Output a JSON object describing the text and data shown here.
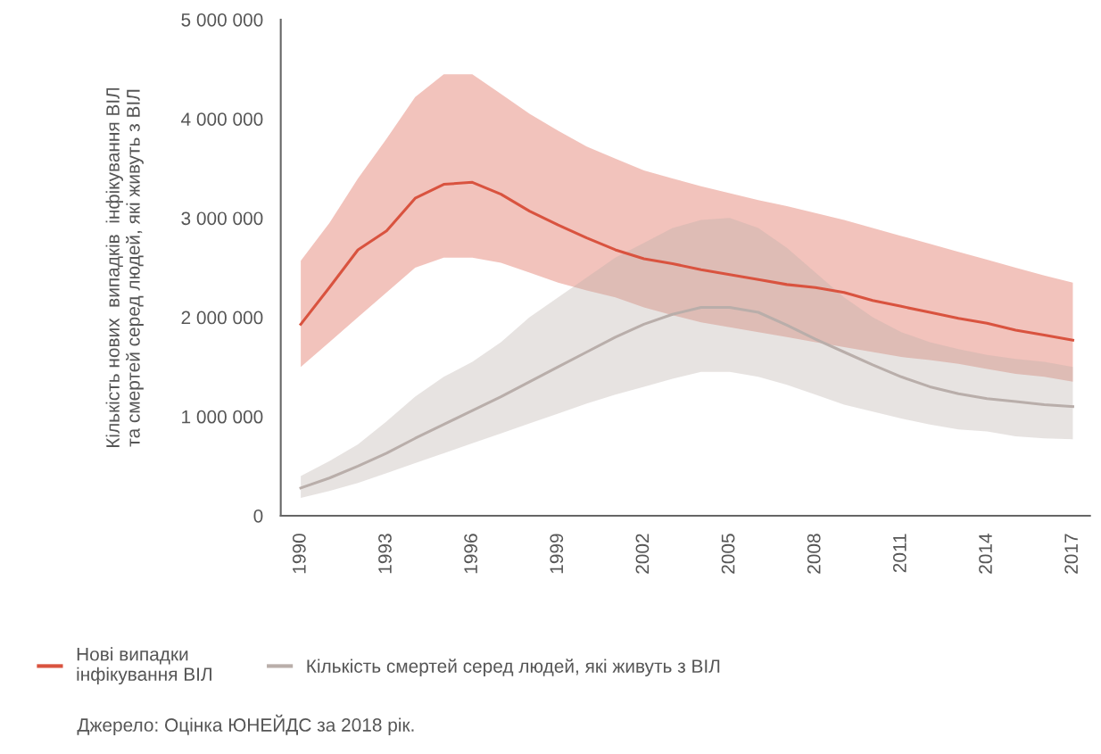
{
  "chart_data": {
    "type": "line",
    "ylabel": "Кількість нових  випадків  інфікування ВІЛ\nта смертей серед людей, які живуть з ВІЛ",
    "x": [
      1990,
      1991,
      1992,
      1993,
      1994,
      1995,
      1996,
      1997,
      1998,
      1999,
      2000,
      2001,
      2002,
      2003,
      2004,
      2005,
      2006,
      2007,
      2008,
      2009,
      2010,
      2011,
      2012,
      2013,
      2014,
      2015,
      2016,
      2017
    ],
    "series": [
      {
        "name": "Нові випадки\nінфікування ВІЛ",
        "color": "#d9533f",
        "values": [
          1930000,
          2300000,
          2680000,
          2870000,
          3200000,
          3340000,
          3360000,
          3240000,
          3070000,
          2930000,
          2800000,
          2680000,
          2590000,
          2540000,
          2480000,
          2430000,
          2380000,
          2330000,
          2300000,
          2250000,
          2170000,
          2110000,
          2050000,
          1990000,
          1940000,
          1870000,
          1820000,
          1770000
        ],
        "upper": [
          2570000,
          2950000,
          3400000,
          3800000,
          4220000,
          4450000,
          4450000,
          4250000,
          4050000,
          3880000,
          3720000,
          3600000,
          3480000,
          3400000,
          3320000,
          3250000,
          3180000,
          3120000,
          3050000,
          2980000,
          2900000,
          2820000,
          2740000,
          2660000,
          2580000,
          2500000,
          2420000,
          2350000
        ],
        "lower": [
          1500000,
          1750000,
          2000000,
          2250000,
          2500000,
          2600000,
          2600000,
          2550000,
          2450000,
          2350000,
          2270000,
          2200000,
          2100000,
          2020000,
          1950000,
          1900000,
          1850000,
          1800000,
          1750000,
          1700000,
          1650000,
          1600000,
          1570000,
          1530000,
          1480000,
          1430000,
          1400000,
          1350000
        ]
      },
      {
        "name": "Кількість смертей серед людей, які живуть з ВІЛ",
        "color": "#b9aeaa",
        "values": [
          280000,
          380000,
          500000,
          630000,
          780000,
          920000,
          1060000,
          1200000,
          1350000,
          1500000,
          1650000,
          1800000,
          1930000,
          2030000,
          2100000,
          2100000,
          2050000,
          1920000,
          1780000,
          1650000,
          1520000,
          1400000,
          1300000,
          1230000,
          1180000,
          1150000,
          1120000,
          1100000
        ],
        "upper": [
          400000,
          550000,
          720000,
          950000,
          1200000,
          1400000,
          1550000,
          1750000,
          2000000,
          2200000,
          2400000,
          2600000,
          2750000,
          2900000,
          2980000,
          3000000,
          2900000,
          2700000,
          2450000,
          2200000,
          2000000,
          1850000,
          1750000,
          1680000,
          1620000,
          1580000,
          1550000,
          1500000
        ],
        "lower": [
          180000,
          250000,
          330000,
          430000,
          530000,
          630000,
          730000,
          830000,
          930000,
          1030000,
          1130000,
          1220000,
          1300000,
          1380000,
          1450000,
          1450000,
          1400000,
          1320000,
          1220000,
          1120000,
          1050000,
          980000,
          920000,
          870000,
          850000,
          800000,
          780000,
          770000
        ]
      }
    ],
    "xlim": [
      1989.3,
      2017.6
    ],
    "xticks": [
      1990,
      1993,
      1996,
      1999,
      2002,
      2005,
      2008,
      2011,
      2014,
      2017
    ],
    "ylim": [
      0,
      5000000
    ],
    "yticks": [
      0,
      {
        "value": 1000000,
        "label": "1 000 000"
      },
      {
        "value": 2000000,
        "label": "2 000 000"
      },
      {
        "value": 3000000,
        "label": "3 000 000"
      },
      {
        "value": 4000000,
        "label": "4 000 000"
      },
      {
        "value": 5000000,
        "label": "5 000 000"
      }
    ],
    "grid": false,
    "legend": "bottom",
    "annotations": [
      "Джерело: Оцінка ЮНЕЙДС за 2018 рік."
    ]
  }
}
